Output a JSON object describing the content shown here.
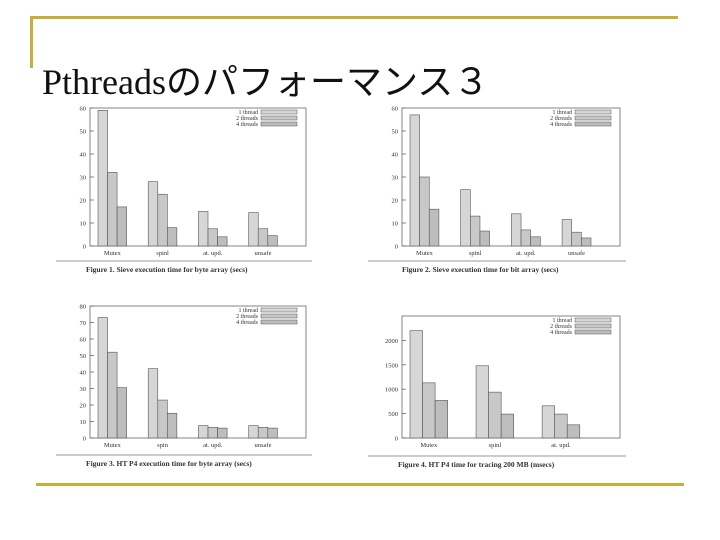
{
  "slide": {
    "title": "Pthreadsのパフォーマンス３"
  },
  "colors": {
    "accent": "#c9ad3c",
    "bar1": "#d6d6d6",
    "bar2": "#c8c8c8",
    "bar3": "#bdbdbd"
  },
  "chart_data": [
    {
      "type": "bar",
      "categories": [
        "Mutex",
        "spinl",
        "at. upd.",
        "unsafe"
      ],
      "series": [
        {
          "name": "1 thread",
          "values": [
            59,
            28,
            15,
            14.5
          ]
        },
        {
          "name": "2 threads",
          "values": [
            32,
            22.5,
            7.5,
            7.5
          ]
        },
        {
          "name": "4 threads",
          "values": [
            17,
            8,
            4,
            4.5
          ]
        }
      ],
      "ylim": [
        0,
        60
      ],
      "yticks": [
        "0",
        "10",
        "20",
        "30",
        "40",
        "50",
        "60"
      ],
      "legend_position": "top-right",
      "caption": "Figure 1.  Sieve execution time for byte array (secs)"
    },
    {
      "type": "bar",
      "categories": [
        "Mutex",
        "spinl",
        "at. upd.",
        "unsafe"
      ],
      "series": [
        {
          "name": "1 thread",
          "values": [
            57,
            24.5,
            14,
            11.5
          ]
        },
        {
          "name": "2 threads",
          "values": [
            30,
            13,
            7,
            6
          ]
        },
        {
          "name": "4 threads",
          "values": [
            16,
            6.5,
            4,
            3.5
          ]
        }
      ],
      "ylim": [
        0,
        60
      ],
      "yticks": [
        "0",
        "10",
        "20",
        "30",
        "40",
        "50",
        "60"
      ],
      "legend_position": "top-right",
      "caption": "Figure 2.  Sieve execution time for bit array (secs)"
    },
    {
      "type": "bar",
      "categories": [
        "Mutex",
        "spin",
        "at. upd.",
        "unsafe"
      ],
      "series": [
        {
          "name": "1 thread",
          "values": [
            73,
            42,
            7.5,
            7.5
          ]
        },
        {
          "name": "2 threads",
          "values": [
            52,
            23,
            6.5,
            6.5
          ]
        },
        {
          "name": "4 threads",
          "values": [
            30.5,
            15,
            6,
            6
          ]
        }
      ],
      "ylim": [
        0,
        80
      ],
      "yticks": [
        "0",
        "10",
        "20",
        "30",
        "40",
        "50",
        "60",
        "70",
        "80"
      ],
      "legend_position": "top-right",
      "caption": "Figure 3.  HT P4 execution time for byte array (secs)"
    },
    {
      "type": "bar",
      "categories": [
        "Mutex",
        "spinl",
        "at. upd."
      ],
      "series": [
        {
          "name": "1 thread",
          "values": [
            2200,
            1480,
            660
          ]
        },
        {
          "name": "2 threads",
          "values": [
            1130,
            940,
            490
          ]
        },
        {
          "name": "4 threads",
          "values": [
            770,
            490,
            270
          ]
        }
      ],
      "ylim": [
        0,
        2500
      ],
      "yticks": [
        "0",
        "500",
        "1000",
        "1500",
        "2000"
      ],
      "legend_position": "top-right",
      "caption": "Figure 4.  HT P4 time for tracing 200 MB (msecs)"
    }
  ]
}
